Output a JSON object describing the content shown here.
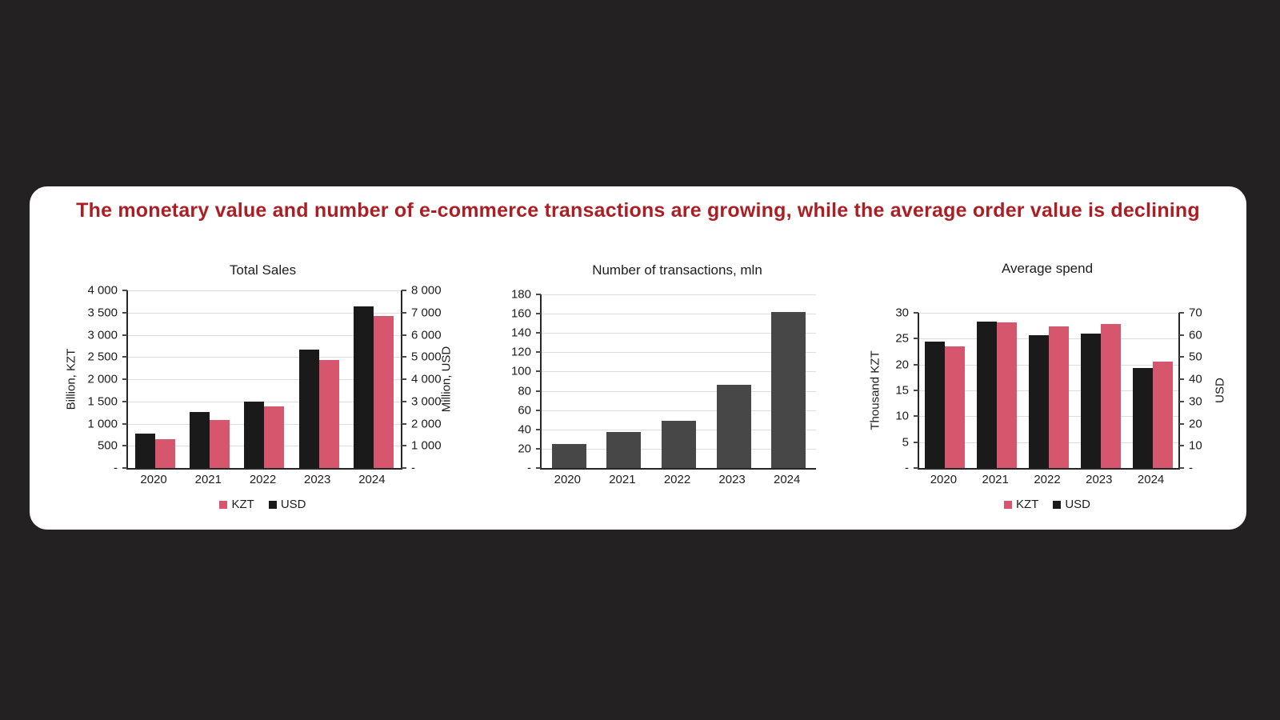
{
  "title": {
    "text": "The monetary value and number of e-commerce transactions are growing, while the average order value is declining",
    "color": "#ab1f24"
  },
  "colors": {
    "background": "#232121",
    "card": "#ffffff",
    "kzt_pink": "#d6566e",
    "usd_black": "#1a1a1a",
    "transactions_gray": "#474747",
    "gridline": "#dcdcdc"
  },
  "chart_data": [
    {
      "type": "bar",
      "title": "Total Sales",
      "categories": [
        "2020",
        "2021",
        "2022",
        "2023",
        "2024"
      ],
      "left_axis": {
        "title": "Billion, KZT",
        "max": 4000,
        "ticks": [
          "4 000",
          "3 500",
          "3 000",
          "2 500",
          "2 000",
          "1 500",
          "1 000",
          "500",
          "-"
        ]
      },
      "right_axis": {
        "title": "Million, USD",
        "max": 8000,
        "ticks": [
          "8 000",
          "7 000",
          "6 000",
          "5 000",
          "4 000",
          "3 000",
          "2 000",
          "1 000",
          "-"
        ]
      },
      "series": [
        {
          "name": "USD",
          "axis": "right",
          "color": "#1a1a1a",
          "values": [
            1565,
            2510,
            3000,
            5330,
            7280
          ]
        },
        {
          "name": "KZT",
          "axis": "left",
          "color": "#d6566e",
          "values": [
            645,
            1085,
            1380,
            2435,
            3430
          ]
        }
      ],
      "legend": [
        {
          "label": "KZT",
          "color": "#d6566e"
        },
        {
          "label": "USD",
          "color": "#1a1a1a"
        }
      ],
      "grid": true,
      "legend_position": "bottom"
    },
    {
      "type": "bar",
      "title": "Number of transactions, mln",
      "categories": [
        "2020",
        "2021",
        "2022",
        "2023",
        "2024"
      ],
      "left_axis": {
        "title": "",
        "max": 180,
        "ticks": [
          "180",
          "160",
          "140",
          "120",
          "100",
          "80",
          "60",
          "40",
          "20",
          "-"
        ]
      },
      "series": [
        {
          "name": "transactions",
          "axis": "left",
          "color": "#474747",
          "values": [
            25,
            37,
            49,
            86,
            162
          ]
        }
      ],
      "grid": true
    },
    {
      "type": "bar",
      "title": "Average spend",
      "categories": [
        "2020",
        "2021",
        "2022",
        "2023",
        "2024"
      ],
      "left_axis": {
        "title": "Thousand KZT",
        "max": 30,
        "ticks": [
          "30",
          "25",
          "20",
          "15",
          "10",
          "5",
          "-"
        ]
      },
      "right_axis": {
        "title": "USD",
        "max": 70,
        "ticks": [
          "70",
          "60",
          "50",
          "40",
          "30",
          "20",
          "10",
          "-"
        ]
      },
      "series": [
        {
          "name": "USD",
          "axis": "right",
          "color": "#1a1a1a",
          "values": [
            57,
            66,
            60,
            60.5,
            45
          ]
        },
        {
          "name": "KZT",
          "axis": "left",
          "color": "#d6566e",
          "values": [
            23.5,
            28.2,
            27.4,
            27.8,
            20.6
          ]
        }
      ],
      "legend": [
        {
          "label": "KZT",
          "color": "#d6566e"
        },
        {
          "label": "USD",
          "color": "#1a1a1a"
        }
      ],
      "grid": true,
      "legend_position": "bottom"
    }
  ]
}
